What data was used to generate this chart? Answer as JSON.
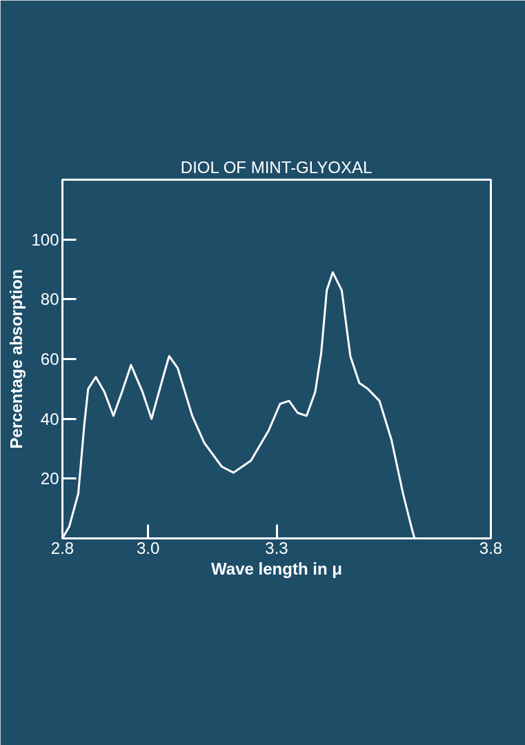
{
  "chart_data": {
    "type": "line",
    "title": "DIOL OF MINT-GLYOXAL",
    "xlabel": "Wave length in μ",
    "ylabel": "Percentage absorption",
    "x": [
      2.8,
      2.816,
      2.837,
      2.851,
      2.86,
      2.878,
      2.898,
      2.919,
      2.939,
      2.96,
      2.987,
      3.008,
      3.035,
      3.049,
      3.069,
      3.103,
      3.131,
      3.172,
      3.199,
      3.24,
      3.281,
      3.308,
      3.329,
      3.349,
      3.37,
      3.39,
      3.404,
      3.417,
      3.431,
      3.452,
      3.472,
      3.493,
      3.513,
      3.54,
      3.568,
      3.595,
      3.616,
      3.622
    ],
    "series": [
      {
        "color": "#ffffff",
        "values": [
          0,
          4,
          15,
          38,
          50,
          54,
          49,
          41,
          49,
          58,
          49,
          40,
          54,
          61,
          57,
          41,
          32,
          24,
          22,
          26,
          36,
          45,
          46,
          42,
          41,
          49,
          62,
          83,
          89,
          83,
          61,
          52,
          50,
          46,
          33,
          15,
          3,
          0
        ]
      }
    ],
    "xlim": [
      2.8,
      3.8
    ],
    "xticks": [
      2.8,
      {
        "value": 3.0,
        "label": "3.0"
      },
      3.3,
      3.8
    ],
    "ylim": [
      0,
      120
    ],
    "yticks": [
      20,
      40,
      60,
      80,
      100
    ],
    "grid": false
  }
}
